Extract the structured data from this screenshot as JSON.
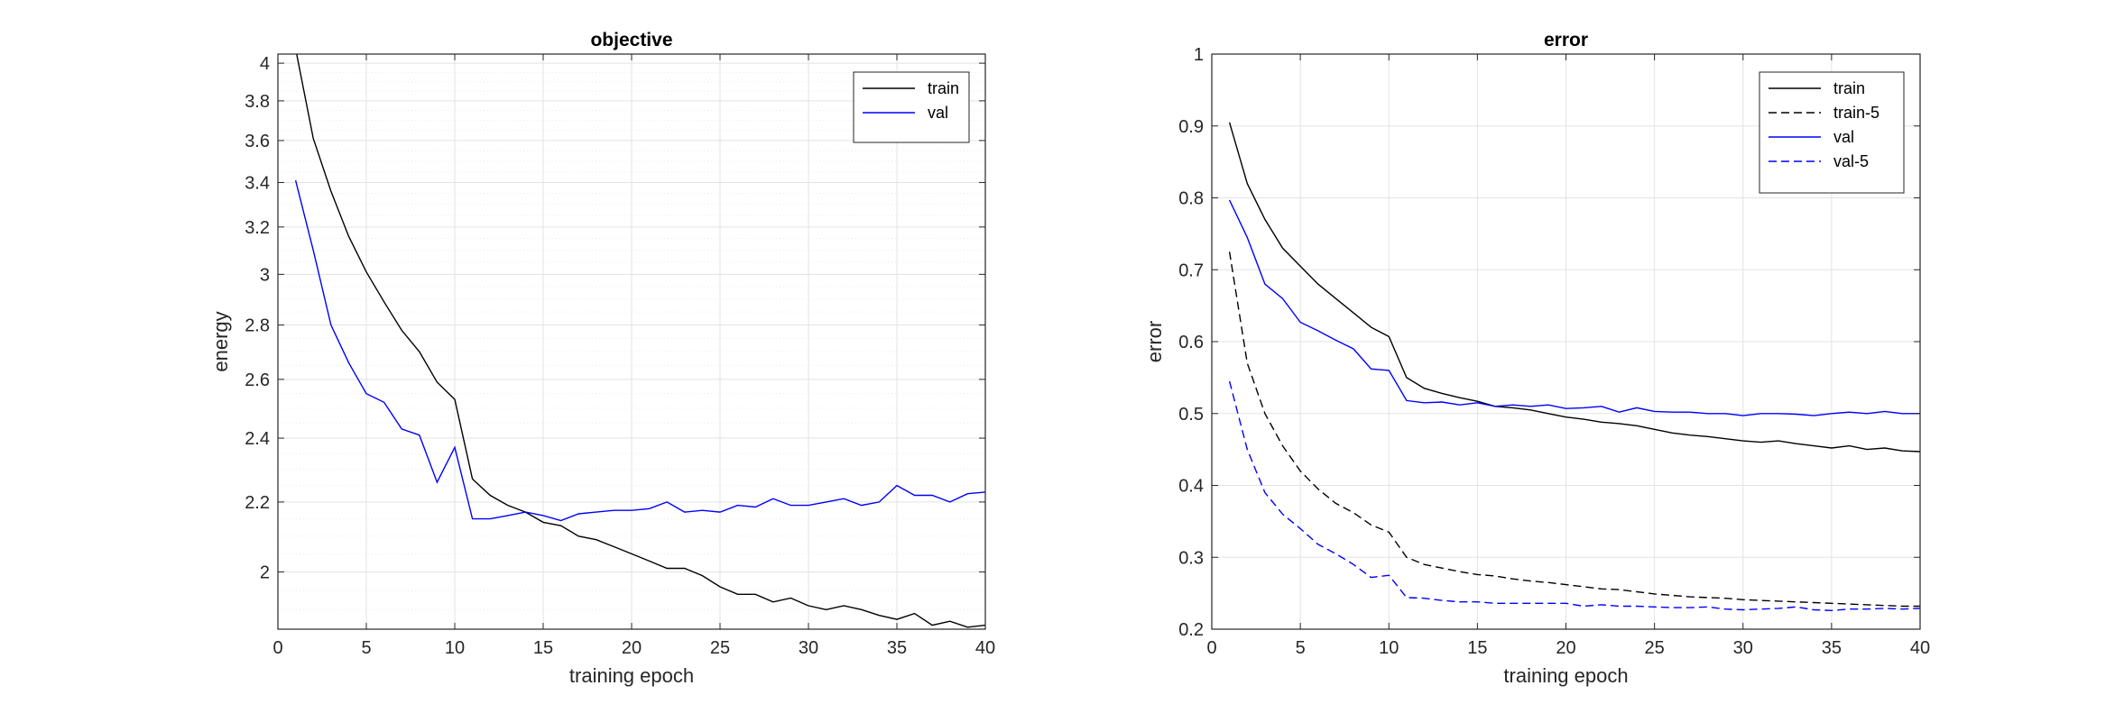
{
  "chart_data": [
    {
      "type": "line",
      "title": "objective",
      "xlabel": "training epoch",
      "ylabel": "energy",
      "xlim": [
        0,
        40
      ],
      "ylim": [
        1.85,
        4.05
      ],
      "yscale": "log",
      "xticks": [
        0,
        5,
        10,
        15,
        20,
        25,
        30,
        35,
        40
      ],
      "xtick_labels": [
        "0",
        "5",
        "10",
        "15",
        "20",
        "25",
        "30",
        "35",
        "40"
      ],
      "yticks": [
        2,
        2.2,
        2.4,
        2.6,
        2.8,
        3,
        3.2,
        3.4,
        3.6,
        3.8,
        4
      ],
      "ytick_labels": [
        "2",
        "2.2",
        "2.4",
        "2.6",
        "2.8",
        "3",
        "3.2",
        "3.4",
        "3.6",
        "3.8",
        "4"
      ],
      "grid": true,
      "legend_position": "top-right",
      "x": [
        1,
        2,
        3,
        4,
        5,
        6,
        7,
        8,
        9,
        10,
        11,
        12,
        13,
        14,
        15,
        16,
        17,
        18,
        19,
        20,
        21,
        22,
        23,
        24,
        25,
        26,
        27,
        28,
        29,
        30,
        31,
        32,
        33,
        34,
        35,
        36,
        37,
        38,
        39,
        40
      ],
      "series": [
        {
          "name": "train",
          "color": "#000000",
          "style": "solid",
          "values": [
            4.08,
            3.61,
            3.36,
            3.16,
            3.01,
            2.89,
            2.78,
            2.7,
            2.59,
            2.53,
            2.27,
            2.22,
            2.19,
            2.17,
            2.14,
            2.13,
            2.1,
            2.09,
            2.07,
            2.05,
            2.03,
            2.01,
            2.01,
            1.99,
            1.96,
            1.94,
            1.94,
            1.92,
            1.93,
            1.91,
            1.9,
            1.91,
            1.9,
            1.885,
            1.875,
            1.89,
            1.86,
            1.87,
            1.855,
            1.86
          ]
        },
        {
          "name": "val",
          "color": "#0000ff",
          "style": "solid",
          "values": [
            3.41,
            3.1,
            2.8,
            2.66,
            2.55,
            2.52,
            2.43,
            2.41,
            2.26,
            2.37,
            2.15,
            2.15,
            2.16,
            2.17,
            2.16,
            2.145,
            2.165,
            2.17,
            2.175,
            2.175,
            2.18,
            2.2,
            2.17,
            2.175,
            2.17,
            2.19,
            2.185,
            2.21,
            2.19,
            2.19,
            2.2,
            2.21,
            2.19,
            2.2,
            2.25,
            2.22,
            2.22,
            2.2,
            2.225,
            2.23
          ]
        }
      ]
    },
    {
      "type": "line",
      "title": "error",
      "xlabel": "training epoch",
      "ylabel": "error",
      "xlim": [
        0,
        40
      ],
      "ylim": [
        0.2,
        1
      ],
      "yscale": "linear",
      "xticks": [
        0,
        5,
        10,
        15,
        20,
        25,
        30,
        35,
        40
      ],
      "xtick_labels": [
        "0",
        "5",
        "10",
        "15",
        "20",
        "25",
        "30",
        "35",
        "40"
      ],
      "yticks": [
        0.2,
        0.3,
        0.4,
        0.5,
        0.6,
        0.7,
        0.8,
        0.9,
        1
      ],
      "ytick_labels": [
        "0.2",
        "0.3",
        "0.4",
        "0.5",
        "0.6",
        "0.7",
        "0.8",
        "0.9",
        "1"
      ],
      "grid": true,
      "legend_position": "top-right",
      "x": [
        1,
        2,
        3,
        4,
        5,
        6,
        7,
        8,
        9,
        10,
        11,
        12,
        13,
        14,
        15,
        16,
        17,
        18,
        19,
        20,
        21,
        22,
        23,
        24,
        25,
        26,
        27,
        28,
        29,
        30,
        31,
        32,
        33,
        34,
        35,
        36,
        37,
        38,
        39,
        40
      ],
      "series": [
        {
          "name": "train",
          "color": "#000000",
          "style": "solid",
          "values": [
            0.905,
            0.82,
            0.77,
            0.73,
            0.705,
            0.68,
            0.66,
            0.64,
            0.62,
            0.607,
            0.55,
            0.535,
            0.528,
            0.522,
            0.517,
            0.51,
            0.508,
            0.505,
            0.5,
            0.495,
            0.492,
            0.488,
            0.486,
            0.483,
            0.478,
            0.473,
            0.47,
            0.468,
            0.465,
            0.462,
            0.46,
            0.462,
            0.458,
            0.455,
            0.452,
            0.455,
            0.45,
            0.452,
            0.448,
            0.447
          ]
        },
        {
          "name": "train-5",
          "color": "#000000",
          "style": "dashed",
          "values": [
            0.725,
            0.57,
            0.5,
            0.455,
            0.42,
            0.395,
            0.375,
            0.362,
            0.345,
            0.335,
            0.3,
            0.29,
            0.285,
            0.28,
            0.276,
            0.274,
            0.27,
            0.267,
            0.265,
            0.262,
            0.259,
            0.256,
            0.255,
            0.252,
            0.249,
            0.247,
            0.245,
            0.244,
            0.243,
            0.241,
            0.24,
            0.239,
            0.238,
            0.237,
            0.236,
            0.235,
            0.234,
            0.233,
            0.232,
            0.232
          ]
        },
        {
          "name": "val",
          "color": "#0000ff",
          "style": "solid",
          "values": [
            0.797,
            0.745,
            0.68,
            0.66,
            0.627,
            0.615,
            0.602,
            0.59,
            0.562,
            0.56,
            0.518,
            0.515,
            0.516,
            0.512,
            0.515,
            0.51,
            0.512,
            0.51,
            0.512,
            0.507,
            0.508,
            0.51,
            0.502,
            0.508,
            0.503,
            0.502,
            0.502,
            0.5,
            0.5,
            0.497,
            0.5,
            0.5,
            0.499,
            0.497,
            0.5,
            0.502,
            0.5,
            0.503,
            0.5,
            0.5
          ]
        },
        {
          "name": "val-5",
          "color": "#0000ff",
          "style": "dashed",
          "values": [
            0.545,
            0.45,
            0.39,
            0.36,
            0.34,
            0.318,
            0.305,
            0.29,
            0.272,
            0.275,
            0.244,
            0.243,
            0.24,
            0.238,
            0.238,
            0.236,
            0.236,
            0.236,
            0.236,
            0.236,
            0.232,
            0.234,
            0.232,
            0.232,
            0.231,
            0.23,
            0.23,
            0.231,
            0.228,
            0.227,
            0.228,
            0.229,
            0.231,
            0.227,
            0.226,
            0.228,
            0.228,
            0.229,
            0.228,
            0.229
          ]
        }
      ]
    }
  ]
}
